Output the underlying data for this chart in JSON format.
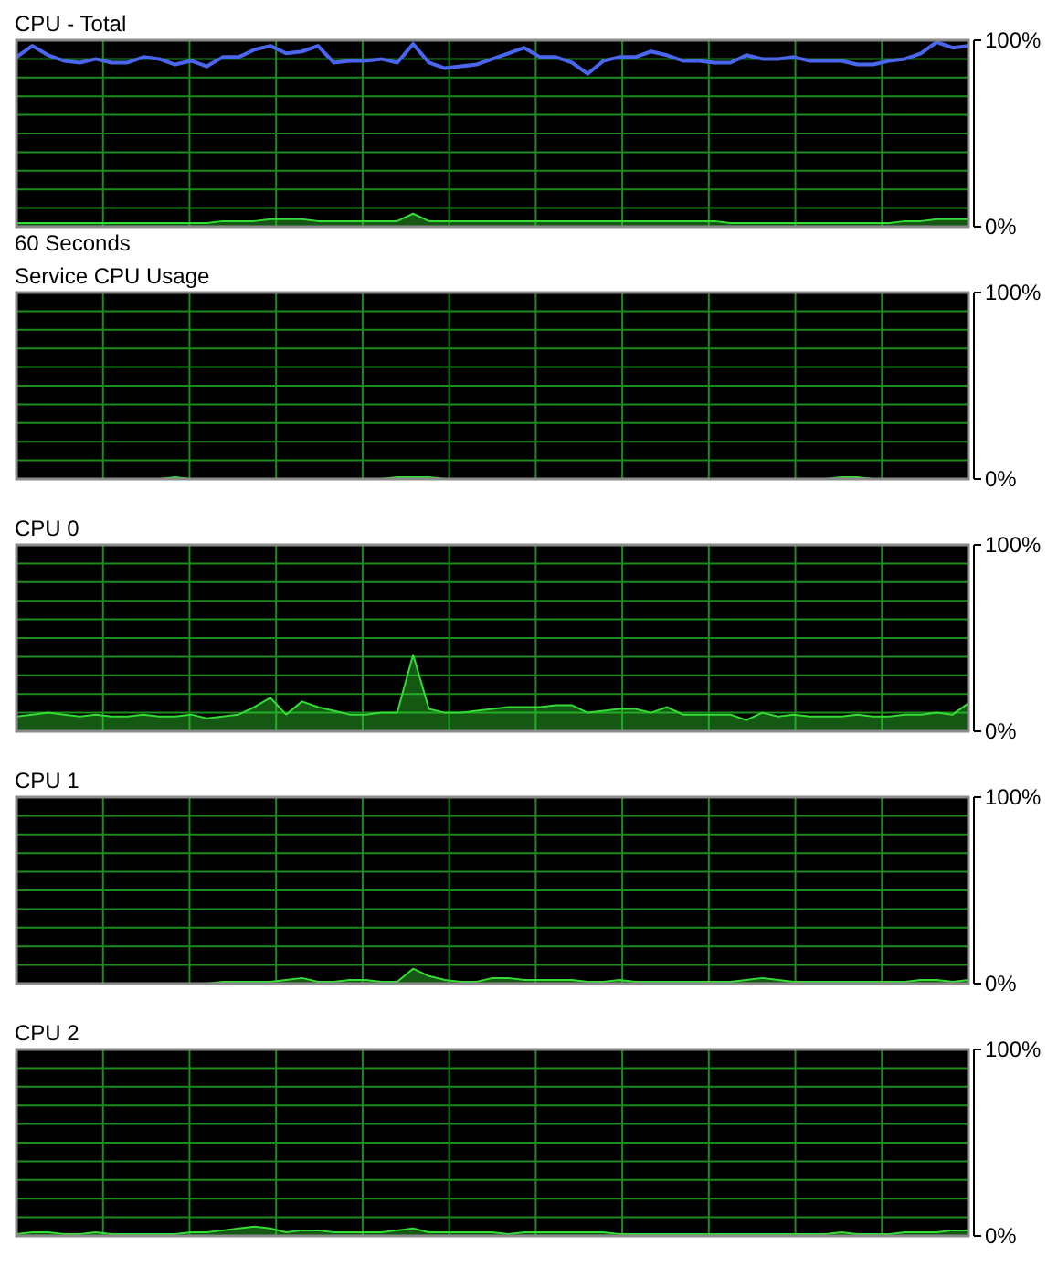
{
  "chart_data": [
    {
      "type": "area",
      "title": "CPU - Total",
      "xlabel": "60 Seconds",
      "ylim": [
        0,
        100
      ],
      "grid": true,
      "tick_labels": "y",
      "categories": [
        null,
        null,
        null,
        null,
        null,
        null,
        null,
        null,
        null,
        null,
        null,
        null,
        null,
        null,
        null,
        null,
        null,
        null,
        null,
        null,
        null,
        null,
        null,
        null,
        null,
        null,
        null,
        null,
        null,
        null,
        null,
        null,
        null,
        null,
        null,
        null,
        null,
        null,
        null,
        null,
        null,
        null,
        null,
        null,
        null,
        null,
        null,
        null,
        null,
        null,
        null,
        null,
        null,
        null,
        null,
        null,
        null,
        null,
        null,
        null,
        null
      ],
      "yticks": [
        {
          "value": 0,
          "label": "0%"
        },
        {
          "value": 10,
          "label": null
        },
        {
          "value": 20,
          "label": null
        },
        {
          "value": 30,
          "label": null
        },
        {
          "value": 40,
          "label": null
        },
        {
          "value": 50,
          "label": null
        },
        {
          "value": 60,
          "label": null
        },
        {
          "value": 70,
          "label": null
        },
        {
          "value": 80,
          "label": null
        },
        {
          "value": 90,
          "label": null
        },
        {
          "value": 100,
          "label": "100%"
        }
      ],
      "series": [
        {
          "type": "area",
          "color": "#33dd33",
          "values": [
            2,
            2,
            2,
            2,
            2,
            2,
            2,
            2,
            2,
            2,
            2,
            2,
            2,
            3,
            3,
            3,
            4,
            4,
            4,
            3,
            3,
            3,
            3,
            3,
            3,
            7,
            3,
            3,
            3,
            3,
            3,
            3,
            3,
            3,
            3,
            3,
            3,
            3,
            3,
            3,
            3,
            3,
            3,
            3,
            3,
            2,
            2,
            2,
            2,
            2,
            2,
            2,
            2,
            2,
            2,
            2,
            3,
            3,
            4,
            4,
            4
          ]
        },
        {
          "type": "line",
          "color": "#4a66ee",
          "values": [
            91,
            97,
            92,
            89,
            88,
            90,
            88,
            88,
            91,
            90,
            87,
            89,
            86,
            91,
            91,
            95,
            97,
            93,
            94,
            97,
            88,
            89,
            89,
            90,
            88,
            98,
            88,
            85,
            86,
            87,
            90,
            93,
            96,
            91,
            91,
            88,
            82,
            89,
            91,
            91,
            94,
            92,
            89,
            89,
            88,
            88,
            92,
            90,
            90,
            91,
            89,
            89,
            89,
            87,
            87,
            89,
            90,
            93,
            99,
            96,
            97
          ]
        }
      ]
    },
    {
      "type": "area",
      "title": "Service CPU Usage",
      "ylim": [
        0,
        100
      ],
      "grid": true,
      "tick_labels": "y",
      "categories": [
        null,
        null,
        null,
        null,
        null,
        null,
        null,
        null,
        null,
        null,
        null,
        null,
        null,
        null,
        null,
        null,
        null,
        null,
        null,
        null,
        null,
        null,
        null,
        null,
        null,
        null,
        null,
        null,
        null,
        null,
        null,
        null,
        null,
        null,
        null,
        null,
        null,
        null,
        null,
        null,
        null,
        null,
        null,
        null,
        null,
        null,
        null,
        null,
        null,
        null,
        null,
        null,
        null,
        null,
        null,
        null,
        null,
        null,
        null,
        null,
        null
      ],
      "yticks": [
        {
          "value": 0,
          "label": "0%"
        },
        {
          "value": 10,
          "label": null
        },
        {
          "value": 20,
          "label": null
        },
        {
          "value": 30,
          "label": null
        },
        {
          "value": 40,
          "label": null
        },
        {
          "value": 50,
          "label": null
        },
        {
          "value": 60,
          "label": null
        },
        {
          "value": 70,
          "label": null
        },
        {
          "value": 80,
          "label": null
        },
        {
          "value": 90,
          "label": null
        },
        {
          "value": 100,
          "label": "100%"
        }
      ],
      "color": "#33dd33",
      "values": [
        0,
        0,
        0,
        0,
        0,
        0,
        0,
        0,
        0,
        0,
        1,
        0,
        0,
        0,
        0,
        0,
        0,
        0,
        0,
        0,
        0,
        0,
        0,
        0,
        1,
        1,
        1,
        0,
        0,
        0,
        0,
        0,
        0,
        0,
        0,
        0,
        0,
        0,
        0,
        0,
        0,
        0,
        0,
        0,
        0,
        0,
        0,
        0,
        0,
        0,
        0,
        0,
        1,
        1,
        0,
        0,
        0,
        0,
        0,
        0,
        0
      ]
    },
    {
      "type": "area",
      "title": "CPU 0",
      "ylim": [
        0,
        100
      ],
      "grid": true,
      "tick_labels": "y",
      "categories": [
        null,
        null,
        null,
        null,
        null,
        null,
        null,
        null,
        null,
        null,
        null,
        null,
        null,
        null,
        null,
        null,
        null,
        null,
        null,
        null,
        null,
        null,
        null,
        null,
        null,
        null,
        null,
        null,
        null,
        null,
        null,
        null,
        null,
        null,
        null,
        null,
        null,
        null,
        null,
        null,
        null,
        null,
        null,
        null,
        null,
        null,
        null,
        null,
        null,
        null,
        null,
        null,
        null,
        null,
        null,
        null,
        null,
        null,
        null,
        null,
        null
      ],
      "yticks": [
        {
          "value": 0,
          "label": "0%"
        },
        {
          "value": 10,
          "label": null
        },
        {
          "value": 20,
          "label": null
        },
        {
          "value": 30,
          "label": null
        },
        {
          "value": 40,
          "label": null
        },
        {
          "value": 50,
          "label": null
        },
        {
          "value": 60,
          "label": null
        },
        {
          "value": 70,
          "label": null
        },
        {
          "value": 80,
          "label": null
        },
        {
          "value": 90,
          "label": null
        },
        {
          "value": 100,
          "label": "100%"
        }
      ],
      "color": "#33dd33",
      "values": [
        8,
        9,
        10,
        9,
        8,
        9,
        8,
        8,
        9,
        8,
        8,
        9,
        7,
        8,
        9,
        13,
        18,
        9,
        16,
        13,
        11,
        9,
        9,
        10,
        10,
        41,
        12,
        10,
        10,
        11,
        12,
        13,
        13,
        13,
        14,
        14,
        10,
        11,
        12,
        12,
        10,
        13,
        9,
        9,
        9,
        9,
        6,
        10,
        8,
        9,
        8,
        8,
        8,
        9,
        8,
        8,
        9,
        9,
        10,
        9,
        15
      ]
    },
    {
      "type": "area",
      "title": "CPU 1",
      "ylim": [
        0,
        100
      ],
      "grid": true,
      "tick_labels": "y",
      "categories": [
        null,
        null,
        null,
        null,
        null,
        null,
        null,
        null,
        null,
        null,
        null,
        null,
        null,
        null,
        null,
        null,
        null,
        null,
        null,
        null,
        null,
        null,
        null,
        null,
        null,
        null,
        null,
        null,
        null,
        null,
        null,
        null,
        null,
        null,
        null,
        null,
        null,
        null,
        null,
        null,
        null,
        null,
        null,
        null,
        null,
        null,
        null,
        null,
        null,
        null,
        null,
        null,
        null,
        null,
        null,
        null,
        null,
        null,
        null,
        null,
        null
      ],
      "yticks": [
        {
          "value": 0,
          "label": "0%"
        },
        {
          "value": 10,
          "label": null
        },
        {
          "value": 20,
          "label": null
        },
        {
          "value": 30,
          "label": null
        },
        {
          "value": 40,
          "label": null
        },
        {
          "value": 50,
          "label": null
        },
        {
          "value": 60,
          "label": null
        },
        {
          "value": 70,
          "label": null
        },
        {
          "value": 80,
          "label": null
        },
        {
          "value": 90,
          "label": null
        },
        {
          "value": 100,
          "label": "100%"
        }
      ],
      "color": "#33dd33",
      "values": [
        0,
        0,
        0,
        0,
        0,
        0,
        0,
        0,
        0,
        0,
        0,
        0,
        0,
        1,
        1,
        1,
        1,
        2,
        3,
        1,
        1,
        2,
        2,
        1,
        1,
        8,
        4,
        2,
        1,
        1,
        3,
        3,
        2,
        2,
        2,
        2,
        1,
        1,
        2,
        1,
        1,
        1,
        1,
        1,
        1,
        1,
        2,
        3,
        2,
        1,
        1,
        1,
        1,
        1,
        1,
        1,
        1,
        2,
        2,
        1,
        2
      ]
    },
    {
      "type": "area",
      "title": "CPU 2",
      "ylim": [
        0,
        100
      ],
      "grid": true,
      "tick_labels": "y",
      "categories": [
        null,
        null,
        null,
        null,
        null,
        null,
        null,
        null,
        null,
        null,
        null,
        null,
        null,
        null,
        null,
        null,
        null,
        null,
        null,
        null,
        null,
        null,
        null,
        null,
        null,
        null,
        null,
        null,
        null,
        null,
        null,
        null,
        null,
        null,
        null,
        null,
        null,
        null,
        null,
        null,
        null,
        null,
        null,
        null,
        null,
        null,
        null,
        null,
        null,
        null,
        null,
        null,
        null,
        null,
        null,
        null,
        null,
        null,
        null,
        null,
        null
      ],
      "yticks": [
        {
          "value": 0,
          "label": "0%"
        },
        {
          "value": 10,
          "label": null
        },
        {
          "value": 20,
          "label": null
        },
        {
          "value": 30,
          "label": null
        },
        {
          "value": 40,
          "label": null
        },
        {
          "value": 50,
          "label": null
        },
        {
          "value": 60,
          "label": null
        },
        {
          "value": 70,
          "label": null
        },
        {
          "value": 80,
          "label": null
        },
        {
          "value": 90,
          "label": null
        },
        {
          "value": 100,
          "label": "100%"
        }
      ],
      "color": "#33dd33",
      "values": [
        1,
        2,
        2,
        1,
        1,
        2,
        1,
        1,
        1,
        1,
        1,
        2,
        2,
        3,
        4,
        5,
        4,
        2,
        3,
        3,
        2,
        2,
        2,
        2,
        3,
        4,
        2,
        2,
        2,
        2,
        2,
        1,
        2,
        2,
        2,
        2,
        2,
        2,
        1,
        1,
        1,
        1,
        1,
        1,
        1,
        1,
        1,
        1,
        1,
        1,
        1,
        1,
        2,
        1,
        1,
        1,
        2,
        2,
        2,
        3,
        3
      ]
    }
  ]
}
